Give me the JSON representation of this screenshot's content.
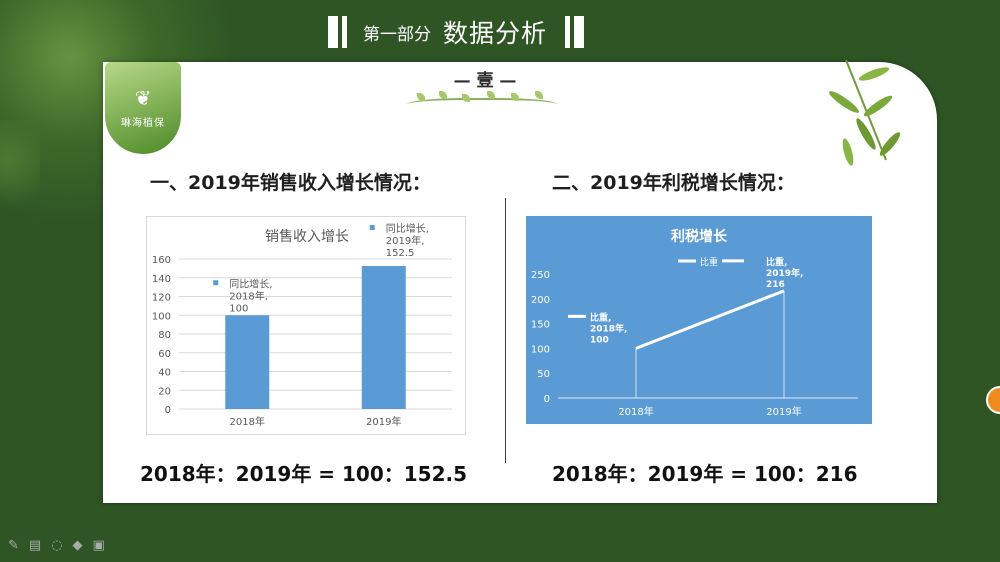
{
  "header": {
    "section": "第一部分",
    "title": "数据分析"
  },
  "logo": {
    "text": "琳海植保"
  },
  "badge": "— 壹 —",
  "left": {
    "heading": "一、2019年销售收入增长情况：",
    "ratio": "2018年：2019年 = 100：152.5"
  },
  "right": {
    "heading": "二、2019年利税增长情况：",
    "ratio": "2018年：2019年 = 100：216"
  },
  "chart_data": [
    {
      "type": "bar",
      "title": "销售收入增长",
      "categories": [
        "2018年",
        "2019年"
      ],
      "series": [
        {
          "name": "同比增长",
          "values": [
            100,
            152.5
          ]
        }
      ],
      "data_labels": [
        "同比增长, 2018年, 100",
        "同比增长, 2019年, 152.5"
      ],
      "yticks": [
        0,
        20,
        40,
        60,
        80,
        100,
        120,
        140,
        160
      ],
      "ylim": [
        0,
        160
      ],
      "grid": true,
      "colors": {
        "bar": "#5b9bd5",
        "text": "#595959",
        "grid": "#d9d9d9"
      }
    },
    {
      "type": "line",
      "title": "利税增长",
      "categories": [
        "2018年",
        "2019年"
      ],
      "series": [
        {
          "name": "比重",
          "values": [
            100,
            216
          ]
        }
      ],
      "legend": "比重",
      "data_labels": [
        "比重, 2018年, 100",
        "比重, 2019年, 216"
      ],
      "yticks": [
        0,
        50,
        100,
        150,
        200,
        250
      ],
      "ylim": [
        0,
        250
      ],
      "grid": false,
      "colors": {
        "background": "#5b9bd5",
        "line": "#ffffff",
        "text": "#ffffff"
      }
    }
  ],
  "toolbar": {
    "icons": [
      "pen-icon",
      "slides-icon",
      "grid-icon",
      "pointer-icon",
      "camera-icon"
    ]
  }
}
